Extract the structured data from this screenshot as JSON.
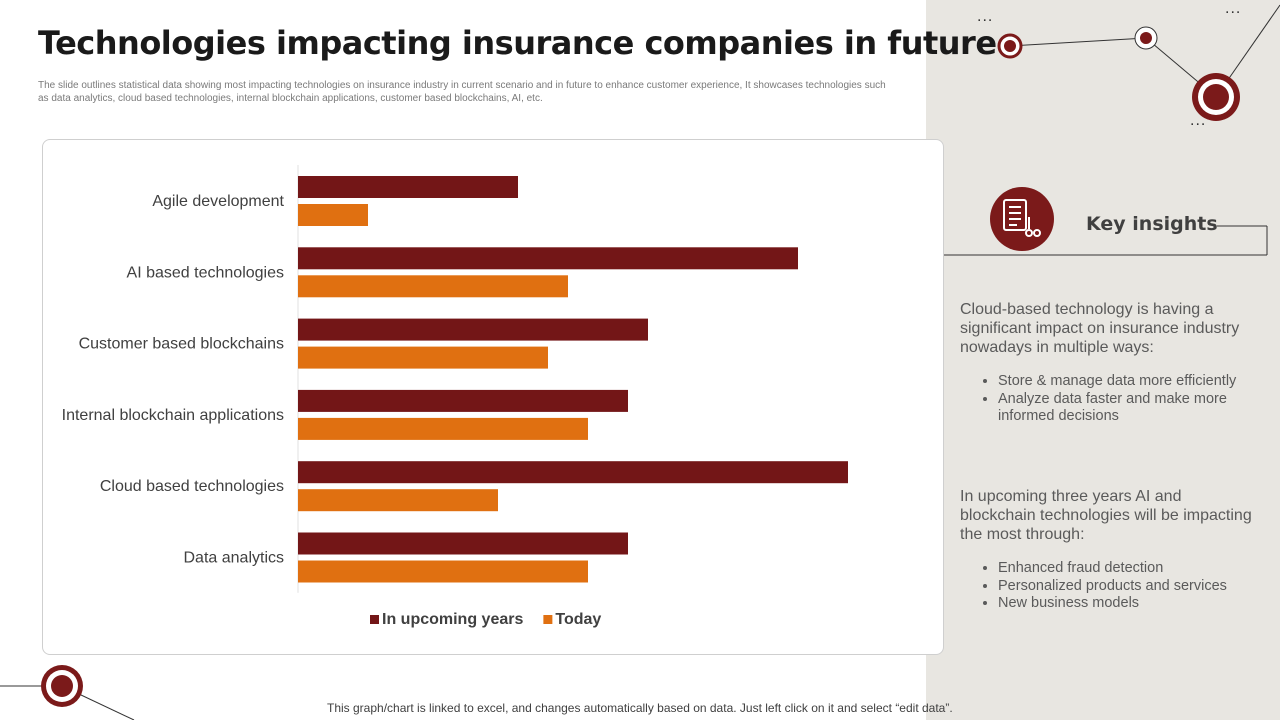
{
  "slide": {
    "title": "Technologies impacting insurance companies in future",
    "subtitle": "The slide outlines statistical data showing most impacting technologies on insurance industry in current scenario and in future to enhance customer experience, It showcases technologies such as data analytics, cloud based technologies, internal blockchain applications, customer based blockchains, AI, etc.",
    "footer_note": "This graph/chart is linked to excel, and changes automatically based on data. Just left click on it and select “edit data”."
  },
  "colors": {
    "upcoming": "#731617",
    "today": "#e07011",
    "panel": "#e8e6e1",
    "accent": "#7b1a1a"
  },
  "chart_data": {
    "type": "bar",
    "orientation": "horizontal",
    "categories": [
      "Agile development",
      "AI based technologies",
      "Customer based blockchains",
      "Internal blockchain applications",
      "Cloud based technologies",
      "Data analytics"
    ],
    "series": [
      {
        "name": "In upcoming years",
        "values": [
          2.2,
          5.0,
          3.5,
          3.3,
          5.5,
          3.3
        ]
      },
      {
        "name": "Today",
        "values": [
          0.7,
          2.7,
          2.5,
          2.9,
          2.0,
          2.9
        ]
      }
    ],
    "xlim": [
      0,
      6
    ],
    "grid": false,
    "legend": "bottom"
  },
  "insights": {
    "heading": "Key insights",
    "icon": "checklist-icon",
    "blocks": [
      {
        "text": "Cloud-based technology is having a significant impact on insurance industry nowadays in multiple ways:",
        "bullets": [
          "Store & manage data more efficiently",
          "Analyze data faster and make more informed decisions"
        ]
      },
      {
        "text": "In upcoming three years AI and blockchain technologies will be impacting the most through:",
        "bullets": [
          "Enhanced fraud detection",
          "Personalized products and services",
          "New business models"
        ]
      }
    ]
  },
  "decor": {
    "ellipsis": "..."
  }
}
